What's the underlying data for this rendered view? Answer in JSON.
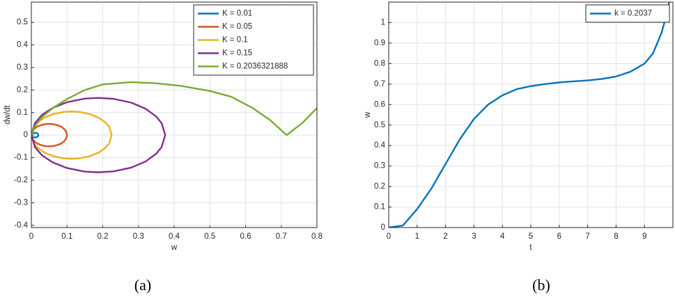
{
  "chart_data": [
    {
      "type": "line",
      "xlabel": "w",
      "ylabel": "dw/dt",
      "caption": "(a)",
      "xlim": [
        0,
        0.8
      ],
      "ylim": [
        -0.41,
        0.59
      ],
      "xticks": [
        0,
        0.1,
        0.2,
        0.3,
        0.4,
        0.5,
        0.6,
        0.7,
        0.8
      ],
      "yticks": [
        -0.4,
        -0.3,
        -0.2,
        -0.1,
        0,
        0.1,
        0.2,
        0.3,
        0.4,
        0.5
      ],
      "grid": true,
      "legend": "upper right",
      "series": [
        {
          "name": "K = 0.01",
          "color": "#0072BD",
          "x": [
            0,
            0.002,
            0.005,
            0.01,
            0.015,
            0.018,
            0.02,
            0.018,
            0.015,
            0.01,
            0.005,
            0.002,
            0
          ],
          "values": [
            0,
            0.006,
            0.009,
            0.01,
            0.009,
            0.006,
            0,
            -0.006,
            -0.009,
            -0.01,
            -0.009,
            -0.006,
            0
          ]
        },
        {
          "name": "K = 0.05",
          "color": "#D95319",
          "x": [
            0,
            0.003,
            0.008,
            0.016,
            0.027,
            0.04,
            0.05,
            0.06,
            0.073,
            0.084,
            0.092,
            0.097,
            0.1,
            0.097,
            0.092,
            0.084,
            0.073,
            0.06,
            0.05,
            0.04,
            0.027,
            0.016,
            0.008,
            0.003,
            0
          ],
          "values": [
            0,
            0.017,
            0.027,
            0.037,
            0.044,
            0.049,
            0.05,
            0.049,
            0.044,
            0.037,
            0.027,
            0.017,
            0,
            -0.017,
            -0.027,
            -0.037,
            -0.044,
            -0.049,
            -0.05,
            -0.049,
            -0.044,
            -0.037,
            -0.027,
            -0.017,
            0
          ]
        },
        {
          "name": "K = 0.1",
          "color": "#EDB120",
          "x": [
            0,
            0.0068,
            0.018,
            0.036,
            0.0608,
            0.09,
            0.1125,
            0.135,
            0.1643,
            0.189,
            0.207,
            0.2183,
            0.225,
            0.2183,
            0.207,
            0.189,
            0.1643,
            0.135,
            0.1125,
            0.09,
            0.0608,
            0.036,
            0.018,
            0.0068,
            0
          ],
          "values": [
            0,
            0.036,
            0.057,
            0.077,
            0.093,
            0.103,
            0.105,
            0.103,
            0.093,
            0.077,
            0.057,
            0.036,
            0,
            -0.036,
            -0.057,
            -0.077,
            -0.093,
            -0.103,
            -0.105,
            -0.103,
            -0.093,
            -0.077,
            -0.057,
            -0.036,
            0
          ]
        },
        {
          "name": "K = 0.15",
          "color": "#7E2F8E",
          "x": [
            0,
            0.01,
            0.03,
            0.06,
            0.1,
            0.15,
            0.1875,
            0.23,
            0.28,
            0.32,
            0.35,
            0.365,
            0.375,
            0.365,
            0.35,
            0.32,
            0.28,
            0.23,
            0.1875,
            0.15,
            0.1,
            0.06,
            0.03,
            0.01,
            0
          ],
          "values": [
            0,
            0.053,
            0.09,
            0.121,
            0.146,
            0.162,
            0.165,
            0.161,
            0.144,
            0.117,
            0.082,
            0.053,
            0,
            -0.053,
            -0.082,
            -0.117,
            -0.144,
            -0.161,
            -0.165,
            -0.162,
            -0.146,
            -0.121,
            -0.09,
            -0.053,
            0
          ]
        },
        {
          "name": "K = 0.2036321888",
          "color": "#77AC30",
          "x": [
            0,
            0.01,
            0.03,
            0.06,
            0.1,
            0.15,
            0.2,
            0.28,
            0.35,
            0.42,
            0.5,
            0.56,
            0.62,
            0.67,
            0.715,
            0.76,
            0.8
          ],
          "values": [
            0,
            0.04,
            0.08,
            0.12,
            0.16,
            0.2,
            0.225,
            0.235,
            0.23,
            0.218,
            0.196,
            0.17,
            0.12,
            0.065,
            0,
            0.055,
            0.12
          ]
        }
      ]
    },
    {
      "type": "line",
      "xlabel": "t",
      "ylabel": "w",
      "caption": "(b)",
      "xlim": [
        0,
        10
      ],
      "ylim": [
        0,
        1.1
      ],
      "xticks": [
        0,
        1,
        2,
        3,
        4,
        5,
        6,
        7,
        8,
        9
      ],
      "yticks": [
        0,
        0.1,
        0.2,
        0.3,
        0.4,
        0.5,
        0.6,
        0.7,
        0.8,
        0.9,
        1
      ],
      "grid": true,
      "legend": "upper right",
      "series": [
        {
          "name": "k = 0.2037",
          "color": "#0072BD",
          "x": [
            0,
            0.5,
            1,
            1.5,
            2,
            2.5,
            3,
            3.5,
            4,
            4.5,
            5,
            5.5,
            6,
            6.5,
            7,
            7.5,
            8,
            8.5,
            9,
            9.3,
            9.6,
            9.8,
            9.87
          ],
          "values": [
            0,
            0.01,
            0.09,
            0.19,
            0.31,
            0.43,
            0.53,
            0.6,
            0.645,
            0.675,
            0.69,
            0.7,
            0.708,
            0.713,
            0.718,
            0.725,
            0.737,
            0.76,
            0.8,
            0.85,
            0.95,
            1.05,
            1.1
          ]
        }
      ]
    }
  ]
}
